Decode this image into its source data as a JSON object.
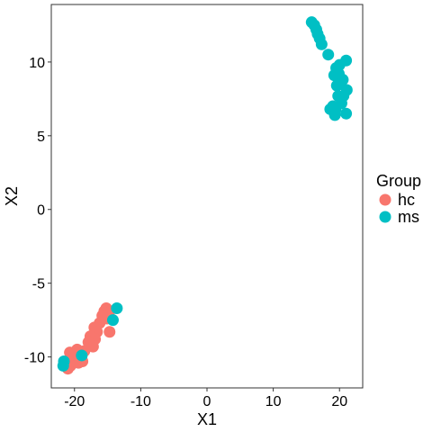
{
  "chart_data": {
    "type": "scatter",
    "title": "",
    "xlabel": "X1",
    "ylabel": "X2",
    "xlim": [
      -23.5,
      23.5
    ],
    "ylim": [
      -12.1,
      13.9
    ],
    "x_ticks": [
      -20,
      -10,
      0,
      10,
      20
    ],
    "x_tick_labels": [
      "-20",
      "-10",
      "0",
      "10",
      "20"
    ],
    "y_ticks": [
      -10,
      -5,
      0,
      5,
      10
    ],
    "y_tick_labels": [
      "-10",
      "-5",
      "0",
      "5",
      "10"
    ],
    "grid": false,
    "legend": {
      "title": "Group",
      "position": "right"
    },
    "series": [
      {
        "name": "hc",
        "color": "#F8766D",
        "points": [
          [
            -15.2,
            -6.7
          ],
          [
            -15.5,
            -6.9
          ],
          [
            -14.8,
            -7.0
          ],
          [
            -15.8,
            -7.2
          ],
          [
            -15.1,
            -7.4
          ],
          [
            -16.2,
            -7.7
          ],
          [
            -17.0,
            -8.0
          ],
          [
            -16.6,
            -8.3
          ],
          [
            -14.7,
            -8.3
          ],
          [
            -17.6,
            -8.6
          ],
          [
            -16.9,
            -8.8
          ],
          [
            -17.9,
            -9.0
          ],
          [
            -17.2,
            -9.3
          ],
          [
            -18.5,
            -9.6
          ],
          [
            -19.0,
            -9.7
          ],
          [
            -19.6,
            -9.5
          ],
          [
            -20.2,
            -9.8
          ],
          [
            -20.7,
            -9.7
          ],
          [
            -20.3,
            -10.1
          ],
          [
            -19.3,
            -10.0
          ],
          [
            -18.8,
            -10.3
          ],
          [
            -19.9,
            -10.3
          ],
          [
            -19.4,
            -10.4
          ],
          [
            -20.9,
            -10.3
          ],
          [
            -21.4,
            -10.5
          ],
          [
            -20.6,
            -10.6
          ],
          [
            -21.0,
            -10.8
          ]
        ]
      },
      {
        "name": "ms",
        "color": "#00BFC4",
        "points": [
          [
            15.8,
            12.7
          ],
          [
            16.2,
            12.5
          ],
          [
            16.5,
            12.2
          ],
          [
            16.7,
            11.9
          ],
          [
            17.0,
            11.6
          ],
          [
            17.3,
            11.2
          ],
          [
            18.3,
            10.5
          ],
          [
            21.0,
            10.1
          ],
          [
            20.0,
            9.8
          ],
          [
            19.5,
            9.6
          ],
          [
            19.9,
            9.2
          ],
          [
            19.2,
            9.1
          ],
          [
            20.5,
            8.8
          ],
          [
            20.2,
            8.5
          ],
          [
            19.6,
            8.4
          ],
          [
            21.1,
            8.1
          ],
          [
            20.6,
            7.7
          ],
          [
            19.8,
            7.7
          ],
          [
            20.3,
            7.2
          ],
          [
            19.0,
            7.0
          ],
          [
            18.6,
            6.8
          ],
          [
            19.4,
            6.8
          ],
          [
            21.0,
            6.5
          ],
          [
            19.3,
            6.4
          ],
          [
            -13.6,
            -6.7
          ],
          [
            -14.2,
            -7.5
          ],
          [
            -18.9,
            -9.9
          ],
          [
            -21.6,
            -10.3
          ],
          [
            -21.7,
            -10.6
          ]
        ]
      }
    ]
  }
}
